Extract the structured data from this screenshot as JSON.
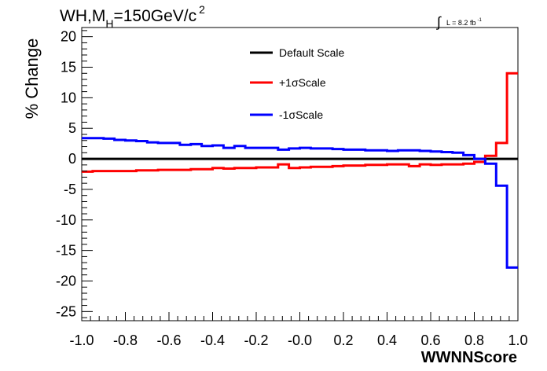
{
  "chart_data": {
    "type": "line",
    "title_main": "WH,M",
    "title_sub": "H",
    "title_rest": "=150GeV/c",
    "title_sup": "2",
    "lumi_integral": "∫",
    "lumi_text": "L = 8.2 fb",
    "lumi_sup": "-1",
    "xlabel": "WWNNScore",
    "ylabel": "% Change",
    "xlim": [
      -1.0,
      1.0
    ],
    "ylim": [
      -26.5,
      21.5
    ],
    "xticks": [
      -1.0,
      -0.8,
      -0.6,
      -0.4,
      -0.2,
      0.0,
      0.2,
      0.4,
      0.6,
      0.8,
      1.0
    ],
    "xtick_labels": [
      "-1.0",
      "-0.8",
      "-0.6",
      "-0.4",
      "-0.2",
      "-0.0",
      "0.2",
      "0.4",
      "0.6",
      "0.8",
      "1.0"
    ],
    "yticks": [
      -25,
      -20,
      -15,
      -10,
      -5,
      0,
      5,
      10,
      15,
      20
    ],
    "ytick_labels": [
      "-25",
      "-20",
      "-15",
      "-10",
      "-5",
      "0",
      "5",
      "10",
      "15",
      "20"
    ],
    "grid": false,
    "legend_placement": "top-center",
    "bin_edges": [
      -1.0,
      -0.95,
      -0.9,
      -0.85,
      -0.8,
      -0.75,
      -0.7,
      -0.65,
      -0.6,
      -0.55,
      -0.5,
      -0.45,
      -0.4,
      -0.35,
      -0.3,
      -0.25,
      -0.2,
      -0.15,
      -0.1,
      -0.05,
      0.0,
      0.05,
      0.1,
      0.15,
      0.2,
      0.25,
      0.3,
      0.35,
      0.4,
      0.45,
      0.5,
      0.55,
      0.6,
      0.65,
      0.7,
      0.75,
      0.8,
      0.85,
      0.9,
      0.95,
      1.0
    ],
    "series": [
      {
        "name": "Default Scale",
        "color": "#000000",
        "values": [
          0,
          0,
          0,
          0,
          0,
          0,
          0,
          0,
          0,
          0,
          0,
          0,
          0,
          0,
          0,
          0,
          0,
          0,
          0,
          0,
          0,
          0,
          0,
          0,
          0,
          0,
          0,
          0,
          0,
          0,
          0,
          0,
          0,
          0,
          0,
          0,
          0,
          0,
          0,
          0
        ]
      },
      {
        "name": "+1σScale",
        "color": "#ff0000",
        "values": [
          -2.1,
          -2.0,
          -2.0,
          -2.0,
          -2.0,
          -1.9,
          -1.9,
          -1.8,
          -1.8,
          -1.8,
          -1.7,
          -1.7,
          -1.5,
          -1.6,
          -1.5,
          -1.5,
          -1.4,
          -1.4,
          -0.9,
          -1.5,
          -1.4,
          -1.3,
          -1.3,
          -1.2,
          -1.1,
          -1.1,
          -1.0,
          -1.0,
          -0.9,
          -0.9,
          -1.2,
          -0.9,
          -1.0,
          -0.9,
          -0.9,
          -0.8,
          -0.5,
          0.5,
          2.6,
          14.0
        ]
      },
      {
        "name": "-1σScale",
        "color": "#0000ff",
        "values": [
          3.4,
          3.4,
          3.3,
          3.1,
          3.0,
          2.9,
          2.7,
          2.6,
          2.6,
          2.3,
          2.4,
          2.1,
          2.2,
          1.8,
          2.1,
          1.8,
          1.8,
          1.8,
          1.5,
          1.7,
          1.8,
          1.7,
          1.7,
          1.6,
          1.5,
          1.5,
          1.4,
          1.4,
          1.3,
          1.4,
          1.4,
          1.3,
          1.2,
          1.1,
          1.0,
          0.6,
          0.0,
          -0.8,
          -4.4,
          -17.8
        ]
      }
    ]
  }
}
